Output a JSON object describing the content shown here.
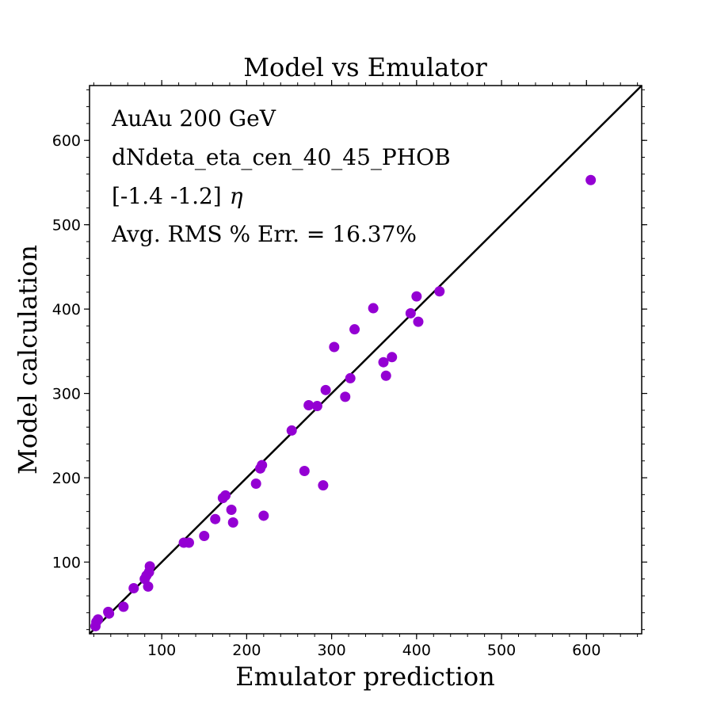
{
  "chart_data": {
    "type": "scatter",
    "title": "Model vs Emulator",
    "xlabel": "Emulator prediction",
    "ylabel": "Model calculation",
    "xlim": [
      15,
      665
    ],
    "ylim": [
      15,
      665
    ],
    "xticks": [
      100,
      200,
      300,
      400,
      500,
      600
    ],
    "yticks": [
      100,
      200,
      300,
      400,
      500,
      600
    ],
    "grid": false,
    "annotations": {
      "system": "AuAu 200 GeV",
      "observable": "dNdeta_eta_cen_40_45_PHOB",
      "eta_range": "[-1.4 -1.2]",
      "eta_symbol": "η",
      "error": "Avg. RMS % Err. = 16.37%"
    },
    "reference_line": {
      "type": "y=x"
    },
    "point_color": "#9400d3",
    "line_color": "#000000",
    "points": [
      {
        "x": 22,
        "y": 24
      },
      {
        "x": 23,
        "y": 29
      },
      {
        "x": 25,
        "y": 32
      },
      {
        "x": 37,
        "y": 41
      },
      {
        "x": 38,
        "y": 39
      },
      {
        "x": 55,
        "y": 47
      },
      {
        "x": 67,
        "y": 69
      },
      {
        "x": 80,
        "y": 80
      },
      {
        "x": 82,
        "y": 84
      },
      {
        "x": 84,
        "y": 71
      },
      {
        "x": 85,
        "y": 88
      },
      {
        "x": 86,
        "y": 95
      },
      {
        "x": 126,
        "y": 123
      },
      {
        "x": 132,
        "y": 123
      },
      {
        "x": 150,
        "y": 131
      },
      {
        "x": 163,
        "y": 151
      },
      {
        "x": 172,
        "y": 176
      },
      {
        "x": 175,
        "y": 179
      },
      {
        "x": 182,
        "y": 162
      },
      {
        "x": 184,
        "y": 147
      },
      {
        "x": 211,
        "y": 193
      },
      {
        "x": 216,
        "y": 211
      },
      {
        "x": 218,
        "y": 215
      },
      {
        "x": 220,
        "y": 155
      },
      {
        "x": 253,
        "y": 256
      },
      {
        "x": 268,
        "y": 208
      },
      {
        "x": 273,
        "y": 286
      },
      {
        "x": 283,
        "y": 285
      },
      {
        "x": 290,
        "y": 191
      },
      {
        "x": 293,
        "y": 304
      },
      {
        "x": 303,
        "y": 355
      },
      {
        "x": 316,
        "y": 296
      },
      {
        "x": 322,
        "y": 318
      },
      {
        "x": 327,
        "y": 376
      },
      {
        "x": 349,
        "y": 401
      },
      {
        "x": 361,
        "y": 337
      },
      {
        "x": 364,
        "y": 321
      },
      {
        "x": 371,
        "y": 343
      },
      {
        "x": 393,
        "y": 395
      },
      {
        "x": 400,
        "y": 415
      },
      {
        "x": 402,
        "y": 385
      },
      {
        "x": 427,
        "y": 421
      },
      {
        "x": 605,
        "y": 553
      }
    ]
  }
}
